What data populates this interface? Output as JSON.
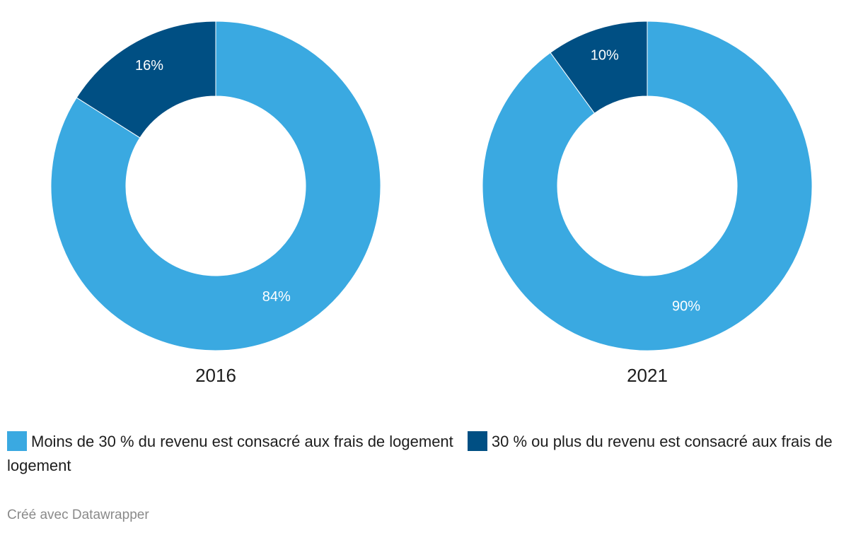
{
  "chart_data": [
    {
      "type": "pie",
      "title": "2016",
      "categories": [
        "30 % ou plus du revenu est consacré aux frais de logement",
        "Moins de 30 % du revenu est consacré aux frais de logement"
      ],
      "values": [
        16,
        84
      ],
      "labels": [
        "16%",
        "84%"
      ],
      "colors": [
        "#004f83",
        "#3aa9e1"
      ]
    },
    {
      "type": "pie",
      "title": "2021",
      "categories": [
        "30 % ou plus du revenu est consacré aux frais de logement",
        "Moins de 30 % du revenu est consacré aux frais de logement"
      ],
      "values": [
        10,
        90
      ],
      "labels": [
        "10%",
        "90%"
      ],
      "colors": [
        "#004f83",
        "#3aa9e1"
      ]
    }
  ],
  "legend": {
    "items": [
      {
        "label": "Moins de 30 % du revenu est consacré aux frais de logement",
        "color": "#3aa9e1"
      },
      {
        "label": "30 % ou plus du revenu est consacré aux frais de logement",
        "color": "#004f83"
      }
    ]
  },
  "footer": {
    "credit": "Créé avec Datawrapper"
  }
}
